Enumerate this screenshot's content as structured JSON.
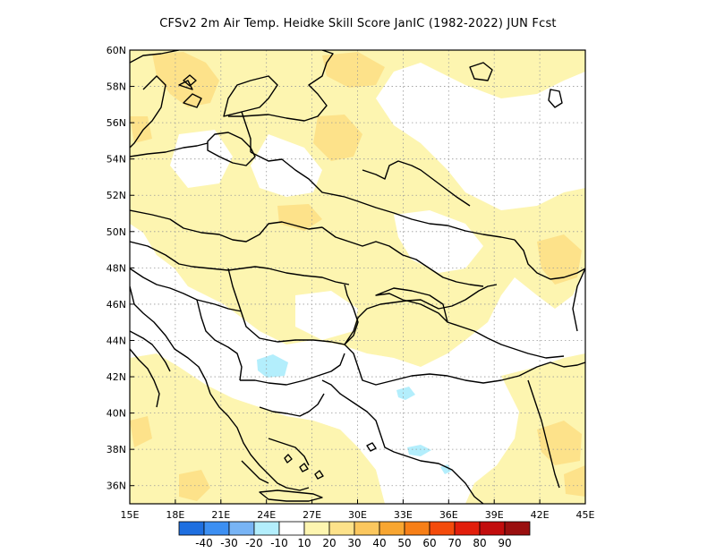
{
  "title": "CFSv2  2m Air Temp. Heidke Skill Score JanIC (1982-2022) JUN Fcst",
  "map": {
    "lon_range": [
      15,
      45
    ],
    "lat_range": [
      35,
      60
    ],
    "grid": true,
    "x_ticks": [
      "15E",
      "18E",
      "21E",
      "24E",
      "27E",
      "30E",
      "33E",
      "36E",
      "39E",
      "42E",
      "45E"
    ],
    "y_ticks": [
      "36N",
      "38N",
      "40N",
      "42N",
      "44N",
      "46N",
      "48N",
      "50N",
      "52N",
      "54N",
      "56N",
      "58N",
      "60N"
    ]
  },
  "colorbar": {
    "colors": [
      "#1e6fe0",
      "#3c8ff2",
      "#78b4f5",
      "#b3eefc",
      "#ffffff",
      "#fdf5b0",
      "#fde28a",
      "#fbc75e",
      "#f8a631",
      "#f77f17",
      "#f44b0b",
      "#e21e0b",
      "#c20d0d",
      "#9a0f0f"
    ],
    "labels": [
      "-40",
      "-30",
      "-20",
      "-10",
      "10",
      "20",
      "30",
      "40",
      "50",
      "60",
      "70",
      "80",
      "90"
    ]
  },
  "palette": {
    "light_yellow": "#fdf5b0",
    "yellow": "#fde28a",
    "light_cyan": "#b3eefc"
  }
}
